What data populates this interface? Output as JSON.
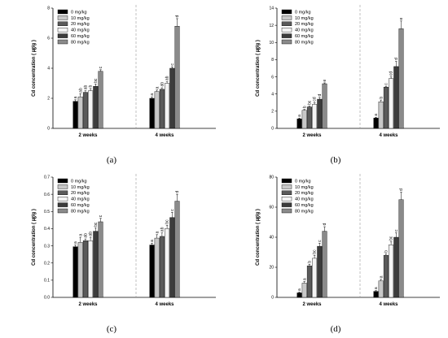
{
  "legend": [
    "0 mg/kg",
    "10 mg/kg",
    "20 mg/kg",
    "40 mg/kg",
    "60 mg/kg",
    "80 mg/kg"
  ],
  "series_colors": [
    "#000000",
    "#c8c8c8",
    "#5a5a5a",
    "#f4f4f4",
    "#3c3c3c",
    "#8a8a8a"
  ],
  "chart_data": [
    {
      "type": "bar",
      "panel_label": "(a)",
      "ylabel": "Cd concentration ( ㎍/g )",
      "categories": [
        "2 weeks",
        "4 weeks"
      ],
      "ylim": [
        0,
        8
      ],
      "yticks": [
        "0",
        "2",
        "4",
        "6",
        "8"
      ],
      "legend_position": "top-left",
      "series": [
        {
          "name": "0 mg/kg",
          "values": [
            1.8,
            2.0
          ],
          "errors": [
            0.1,
            0.1
          ],
          "labels": [
            "a",
            "a"
          ]
        },
        {
          "name": "10 mg/kg",
          "values": [
            2.1,
            2.45
          ],
          "errors": [
            0.2,
            0.1
          ],
          "labels": [
            "ab",
            "a"
          ]
        },
        {
          "name": "20 mg/kg",
          "values": [
            2.4,
            2.6
          ],
          "errors": [
            0.1,
            0.1
          ],
          "labels": [
            "ab",
            "ab"
          ]
        },
        {
          "name": "40 mg/kg",
          "values": [
            2.5,
            3.0
          ],
          "errors": [
            0.15,
            0.1
          ],
          "labels": [
            "b",
            "ab"
          ]
        },
        {
          "name": "60 mg/kg",
          "values": [
            2.8,
            4.0
          ],
          "errors": [
            0.15,
            0.1
          ],
          "labels": [
            "bc",
            "c"
          ]
        },
        {
          "name": "80 mg/kg",
          "values": [
            3.8,
            6.8
          ],
          "errors": [
            0.1,
            0.5
          ],
          "labels": [
            "c",
            "d"
          ]
        }
      ]
    },
    {
      "type": "bar",
      "panel_label": "(b)",
      "ylabel": "Cd concentration ( ㎍/g )",
      "categories": [
        "2 weeks",
        "4 weeks"
      ],
      "ylim": [
        0,
        14
      ],
      "yticks": [
        "0",
        "2",
        "4",
        "6",
        "8",
        "10",
        "12",
        "14"
      ],
      "legend_position": "top-left",
      "series": [
        {
          "name": "0 mg/kg",
          "values": [
            1.1,
            1.2
          ],
          "errors": [
            0.1,
            0.1
          ],
          "labels": [
            "a",
            "a"
          ]
        },
        {
          "name": "10 mg/kg",
          "values": [
            2.1,
            3.1
          ],
          "errors": [
            0.1,
            0.2
          ],
          "labels": [
            "b",
            "b"
          ]
        },
        {
          "name": "20 mg/kg",
          "values": [
            2.5,
            4.8
          ],
          "errors": [
            0.1,
            0.1
          ],
          "labels": [
            "bc",
            "c"
          ]
        },
        {
          "name": "40 mg/kg",
          "values": [
            2.8,
            5.8
          ],
          "errors": [
            0.2,
            0.2
          ],
          "labels": [
            "cd",
            "cd"
          ]
        },
        {
          "name": "60 mg/kg",
          "values": [
            3.4,
            7.2
          ],
          "errors": [
            0.2,
            0.6
          ],
          "labels": [
            "d",
            "d"
          ]
        },
        {
          "name": "80 mg/kg",
          "values": [
            5.2,
            11.6
          ],
          "errors": [
            0.1,
            0.9
          ],
          "labels": [
            "e",
            "e"
          ]
        }
      ]
    },
    {
      "type": "bar",
      "panel_label": "(c)",
      "ylabel": "Cd concentration ( ㎍/g )",
      "categories": [
        "2 weeks",
        "4 weeks"
      ],
      "ylim": [
        0,
        0.7
      ],
      "yticks": [
        "0.0",
        "0.1",
        "0.2",
        "0.3",
        "0.4",
        "0.5",
        "0.6",
        "0.7"
      ],
      "legend_position": "top-left",
      "series": [
        {
          "name": "0 mg/kg",
          "values": [
            0.295,
            0.305
          ],
          "errors": [
            0.01,
            0.01
          ],
          "labels": [
            "a",
            "a"
          ]
        },
        {
          "name": "10 mg/kg",
          "values": [
            0.32,
            0.345
          ],
          "errors": [
            0.03,
            0.02
          ],
          "labels": [
            "a",
            "a"
          ]
        },
        {
          "name": "20 mg/kg",
          "values": [
            0.33,
            0.355
          ],
          "errors": [
            0.01,
            0.02
          ],
          "labels": [
            "ab",
            "ab"
          ]
        },
        {
          "name": "40 mg/kg",
          "values": [
            0.33,
            0.4
          ],
          "errors": [
            0.02,
            0.02
          ],
          "labels": [
            "ab",
            "bc"
          ]
        },
        {
          "name": "60 mg/kg",
          "values": [
            0.385,
            0.465
          ],
          "errors": [
            0.02,
            0.03
          ],
          "labels": [
            "bc",
            "c"
          ]
        },
        {
          "name": "80 mg/kg",
          "values": [
            0.44,
            0.56
          ],
          "errors": [
            0.02,
            0.04
          ],
          "labels": [
            "c",
            "d"
          ]
        }
      ]
    },
    {
      "type": "bar",
      "panel_label": "(d)",
      "ylabel": "Cd concentration ( ㎍/g )",
      "categories": [
        "2 weeks",
        "4 weeks"
      ],
      "ylim": [
        0,
        80
      ],
      "yticks": [
        "0",
        "20",
        "40",
        "60",
        "80"
      ],
      "legend_position": "top-left",
      "series": [
        {
          "name": "0 mg/kg",
          "values": [
            3,
            4
          ],
          "errors": [
            0.5,
            0.5
          ],
          "labels": [
            "a",
            "a"
          ]
        },
        {
          "name": "10 mg/kg",
          "values": [
            9.5,
            11
          ],
          "errors": [
            1,
            1
          ],
          "labels": [
            "a",
            "a"
          ]
        },
        {
          "name": "20 mg/kg",
          "values": [
            21,
            28
          ],
          "errors": [
            1,
            1
          ],
          "labels": [
            "b",
            "b"
          ]
        },
        {
          "name": "40 mg/kg",
          "values": [
            26,
            35
          ],
          "errors": [
            2,
            2
          ],
          "labels": [
            "bc",
            "bc"
          ]
        },
        {
          "name": "60 mg/kg",
          "values": [
            34,
            40
          ],
          "errors": [
            2,
            3
          ],
          "labels": [
            "c",
            "c"
          ]
        },
        {
          "name": "80 mg/kg",
          "values": [
            44,
            65
          ],
          "errors": [
            3,
            5
          ],
          "labels": [
            "d",
            "d"
          ]
        }
      ]
    }
  ]
}
